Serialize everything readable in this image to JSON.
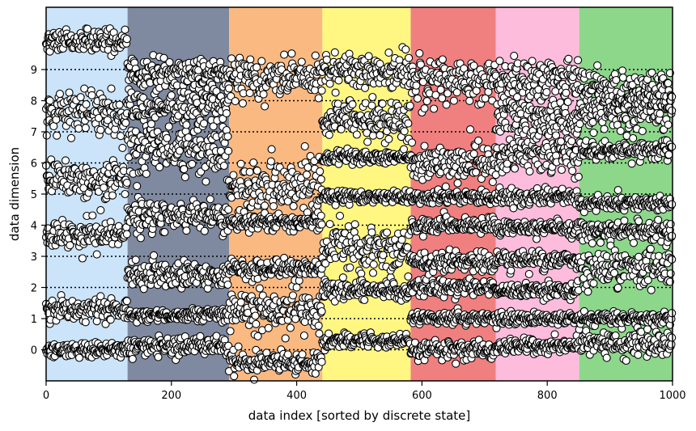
{
  "chart_data": {
    "type": "scatter",
    "title": "",
    "xlabel": "data index [sorted by discrete state]",
    "ylabel": "data dimension",
    "xlim": [
      0,
      1000
    ],
    "ylim": [
      -1,
      11
    ],
    "xticks": [
      0,
      200,
      400,
      600,
      800,
      1000
    ],
    "yticks": [
      0,
      1,
      2,
      3,
      4,
      5,
      6,
      7,
      8,
      9
    ],
    "grid": false,
    "reference_lines": {
      "style": "dotted",
      "color": "#000000",
      "y": [
        0,
        1,
        2,
        3,
        4,
        5,
        6,
        7,
        8,
        9
      ]
    },
    "state_segments": [
      {
        "start": 0,
        "end": 130,
        "color": "#cbe4f9"
      },
      {
        "start": 130,
        "end": 292,
        "color": "#7f8aa0"
      },
      {
        "start": 292,
        "end": 441,
        "color": "#fbb982"
      },
      {
        "start": 441,
        "end": 582,
        "color": "#fff782"
      },
      {
        "start": 582,
        "end": 718,
        "color": "#f08080"
      },
      {
        "start": 718,
        "end": 851,
        "color": "#fdbcdc"
      },
      {
        "start": 851,
        "end": 1000,
        "color": "#8dd78b"
      }
    ],
    "marker": {
      "face": "#ffffff",
      "edge": "#000000"
    },
    "series_by_state": [
      {
        "dims": [
          {
            "center": 0.0,
            "spread": 0.12
          },
          {
            "center": 1.3,
            "spread": 0.18
          },
          {
            "center": 3.7,
            "spread": 0.22
          },
          {
            "center": 5.5,
            "spread": 0.3
          },
          {
            "center": 7.6,
            "spread": 0.35
          },
          {
            "center": 9.9,
            "spread": 0.18
          }
        ]
      },
      {
        "dims": [
          {
            "center": 0.1,
            "spread": 0.15
          },
          {
            "center": 1.1,
            "spread": 0.1
          },
          {
            "center": 2.4,
            "spread": 0.2
          },
          {
            "center": 4.3,
            "spread": 0.25
          },
          {
            "center": 6.4,
            "spread": 0.45
          },
          {
            "center": 7.8,
            "spread": 0.3
          },
          {
            "center": 8.9,
            "spread": 0.25
          }
        ]
      },
      {
        "dims": [
          {
            "center": -0.4,
            "spread": 0.15
          },
          {
            "center": 1.2,
            "spread": 0.35
          },
          {
            "center": 2.6,
            "spread": 0.15
          },
          {
            "center": 4.1,
            "spread": 0.12
          },
          {
            "center": 5.2,
            "spread": 0.45
          },
          {
            "center": 8.7,
            "spread": 0.3
          }
        ]
      },
      {
        "dims": [
          {
            "center": 0.3,
            "spread": 0.12
          },
          {
            "center": 1.9,
            "spread": 0.15
          },
          {
            "center": 3.3,
            "spread": 0.35
          },
          {
            "center": 4.9,
            "spread": 0.1
          },
          {
            "center": 6.2,
            "spread": 0.1
          },
          {
            "center": 7.4,
            "spread": 0.3
          },
          {
            "center": 8.9,
            "spread": 0.3
          }
        ]
      },
      {
        "dims": [
          {
            "center": 0.0,
            "spread": 0.15
          },
          {
            "center": 1.0,
            "spread": 0.1
          },
          {
            "center": 2.0,
            "spread": 0.15
          },
          {
            "center": 2.8,
            "spread": 0.15
          },
          {
            "center": 4.0,
            "spread": 0.12
          },
          {
            "center": 4.9,
            "spread": 0.1
          },
          {
            "center": 6.0,
            "spread": 0.3
          },
          {
            "center": 8.6,
            "spread": 0.35
          }
        ]
      },
      {
        "dims": [
          {
            "center": 0.1,
            "spread": 0.12
          },
          {
            "center": 1.0,
            "spread": 0.1
          },
          {
            "center": 1.9,
            "spread": 0.12
          },
          {
            "center": 2.9,
            "spread": 0.15
          },
          {
            "center": 3.9,
            "spread": 0.12
          },
          {
            "center": 4.9,
            "spread": 0.12
          },
          {
            "center": 6.3,
            "spread": 0.35
          },
          {
            "center": 7.5,
            "spread": 0.35
          },
          {
            "center": 8.7,
            "spread": 0.3
          }
        ]
      },
      {
        "dims": [
          {
            "center": 0.2,
            "spread": 0.2
          },
          {
            "center": 1.0,
            "spread": 0.1
          },
          {
            "center": 2.6,
            "spread": 0.35
          },
          {
            "center": 3.8,
            "spread": 0.15
          },
          {
            "center": 4.7,
            "spread": 0.1
          },
          {
            "center": 6.4,
            "spread": 0.15
          },
          {
            "center": 7.7,
            "spread": 0.3
          },
          {
            "center": 8.3,
            "spread": 0.3
          }
        ]
      }
    ]
  }
}
